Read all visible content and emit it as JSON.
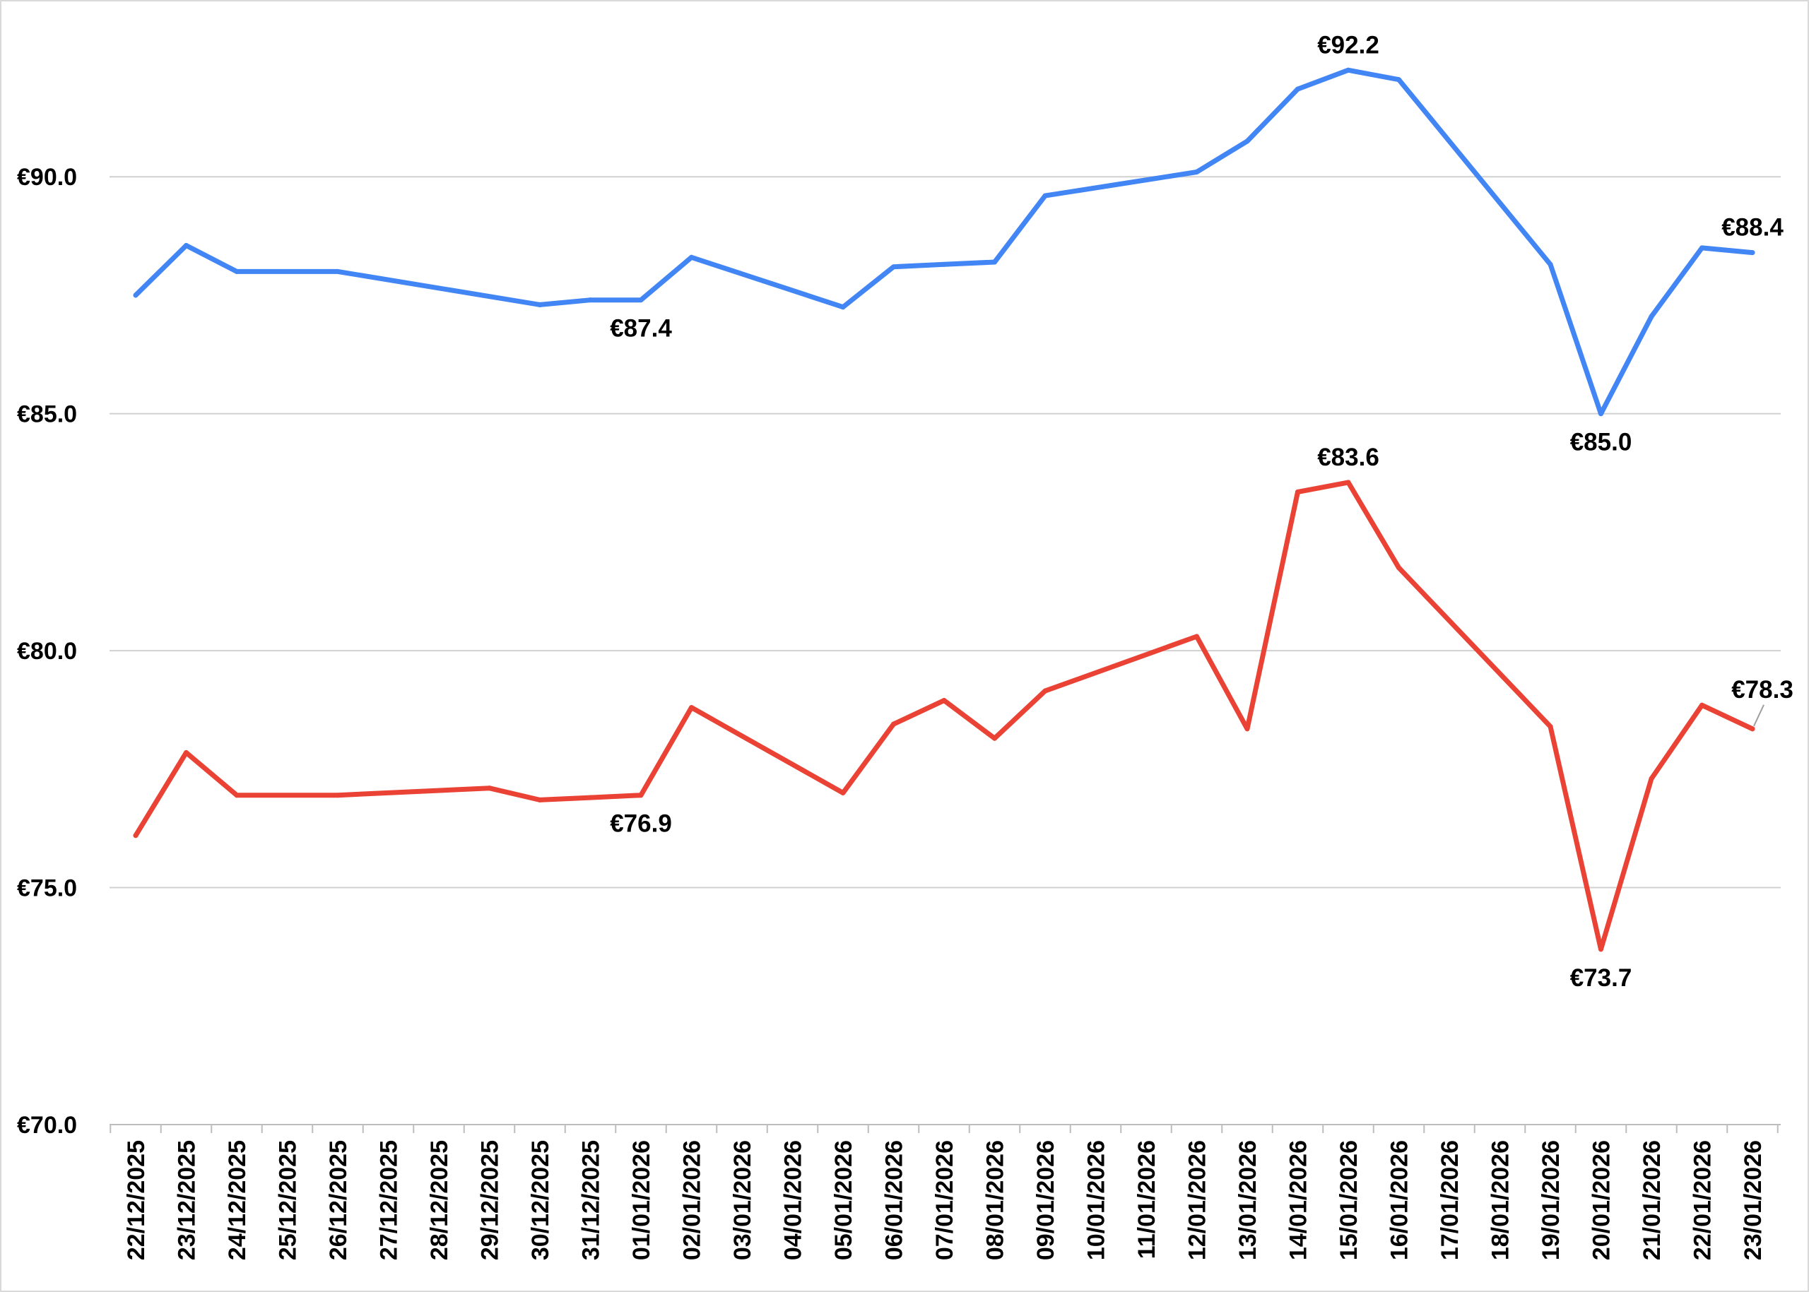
{
  "chart_data": {
    "type": "line",
    "title": "",
    "xlabel": "",
    "ylabel": "",
    "ylim": [
      70,
      93.7
    ],
    "yticks": [
      70,
      75,
      80,
      85,
      90
    ],
    "ytick_labels": [
      "€70.0",
      "€75.0",
      "€80.0",
      "€85.0",
      "€90.0"
    ],
    "grid": true,
    "legend": "none",
    "categories": [
      "22/12/2025",
      "23/12/2025",
      "24/12/2025",
      "25/12/2025",
      "26/12/2025",
      "27/12/2025",
      "28/12/2025",
      "29/12/2025",
      "30/12/2025",
      "31/12/2025",
      "01/01/2026",
      "02/01/2026",
      "03/01/2026",
      "04/01/2026",
      "05/01/2026",
      "06/01/2026",
      "07/01/2026",
      "08/01/2026",
      "09/01/2026",
      "10/01/2026",
      "11/01/2026",
      "12/01/2026",
      "13/01/2026",
      "14/01/2026",
      "15/01/2026",
      "16/01/2026",
      "17/01/2026",
      "18/01/2026",
      "19/01/2026",
      "20/01/2026",
      "21/01/2026",
      "22/01/2026",
      "23/01/2026"
    ],
    "series": [
      {
        "color": "#4285f4",
        "points": [
          {
            "x": "22/12/2025",
            "y": 87.5
          },
          {
            "x": "23/12/2025",
            "y": 88.55
          },
          {
            "x": "24/12/2025",
            "y": 88.0
          },
          {
            "x": "26/12/2025",
            "y": 88.0
          },
          {
            "x": "30/12/2025",
            "y": 87.3
          },
          {
            "x": "31/12/2025",
            "y": 87.4
          },
          {
            "x": "01/01/2026",
            "y": 87.4
          },
          {
            "x": "02/01/2026",
            "y": 88.3
          },
          {
            "x": "05/01/2026",
            "y": 87.25
          },
          {
            "x": "06/01/2026",
            "y": 88.1
          },
          {
            "x": "07/01/2026",
            "y": 88.15
          },
          {
            "x": "08/01/2026",
            "y": 88.2
          },
          {
            "x": "09/01/2026",
            "y": 89.6
          },
          {
            "x": "12/01/2026",
            "y": 90.1
          },
          {
            "x": "13/01/2026",
            "y": 90.75
          },
          {
            "x": "14/01/2026",
            "y": 91.85
          },
          {
            "x": "15/01/2026",
            "y": 92.25
          },
          {
            "x": "16/01/2026",
            "y": 92.05
          },
          {
            "x": "19/01/2026",
            "y": 88.15
          },
          {
            "x": "20/01/2026",
            "y": 85.0
          },
          {
            "x": "21/01/2026",
            "y": 87.05
          },
          {
            "x": "22/01/2026",
            "y": 88.5
          },
          {
            "x": "23/01/2026",
            "y": 88.4
          }
        ],
        "labels": [
          {
            "x": "01/01/2026",
            "text": "€87.4",
            "pos": "below"
          },
          {
            "x": "15/01/2026",
            "text": "€92.2",
            "pos": "above"
          },
          {
            "x": "20/01/2026",
            "text": "€85.0",
            "pos": "below"
          },
          {
            "x": "23/01/2026",
            "text": "€88.4",
            "pos": "above"
          }
        ]
      },
      {
        "color": "#ea4335",
        "points": [
          {
            "x": "22/12/2025",
            "y": 76.1
          },
          {
            "x": "23/12/2025",
            "y": 77.85
          },
          {
            "x": "24/12/2025",
            "y": 76.95
          },
          {
            "x": "26/12/2025",
            "y": 76.95
          },
          {
            "x": "29/12/2025",
            "y": 77.1
          },
          {
            "x": "30/12/2025",
            "y": 76.85
          },
          {
            "x": "31/12/2025",
            "y": 76.9
          },
          {
            "x": "01/01/2026",
            "y": 76.95
          },
          {
            "x": "02/01/2026",
            "y": 78.8
          },
          {
            "x": "05/01/2026",
            "y": 77.0
          },
          {
            "x": "06/01/2026",
            "y": 78.45
          },
          {
            "x": "07/01/2026",
            "y": 78.95
          },
          {
            "x": "08/01/2026",
            "y": 78.15
          },
          {
            "x": "09/01/2026",
            "y": 79.15
          },
          {
            "x": "12/01/2026",
            "y": 80.3
          },
          {
            "x": "13/01/2026",
            "y": 78.35
          },
          {
            "x": "14/01/2026",
            "y": 83.35
          },
          {
            "x": "15/01/2026",
            "y": 83.55
          },
          {
            "x": "16/01/2026",
            "y": 81.75
          },
          {
            "x": "19/01/2026",
            "y": 78.4
          },
          {
            "x": "20/01/2026",
            "y": 73.7
          },
          {
            "x": "21/01/2026",
            "y": 77.3
          },
          {
            "x": "22/01/2026",
            "y": 78.85
          },
          {
            "x": "23/01/2026",
            "y": 78.35
          }
        ],
        "labels": [
          {
            "x": "01/01/2026",
            "text": "€76.9",
            "pos": "below"
          },
          {
            "x": "15/01/2026",
            "text": "€83.6",
            "pos": "above"
          },
          {
            "x": "20/01/2026",
            "text": "€73.7",
            "pos": "below"
          },
          {
            "x": "23/01/2026",
            "text": "€78.3",
            "pos": "above",
            "leader": true
          }
        ]
      }
    ]
  }
}
